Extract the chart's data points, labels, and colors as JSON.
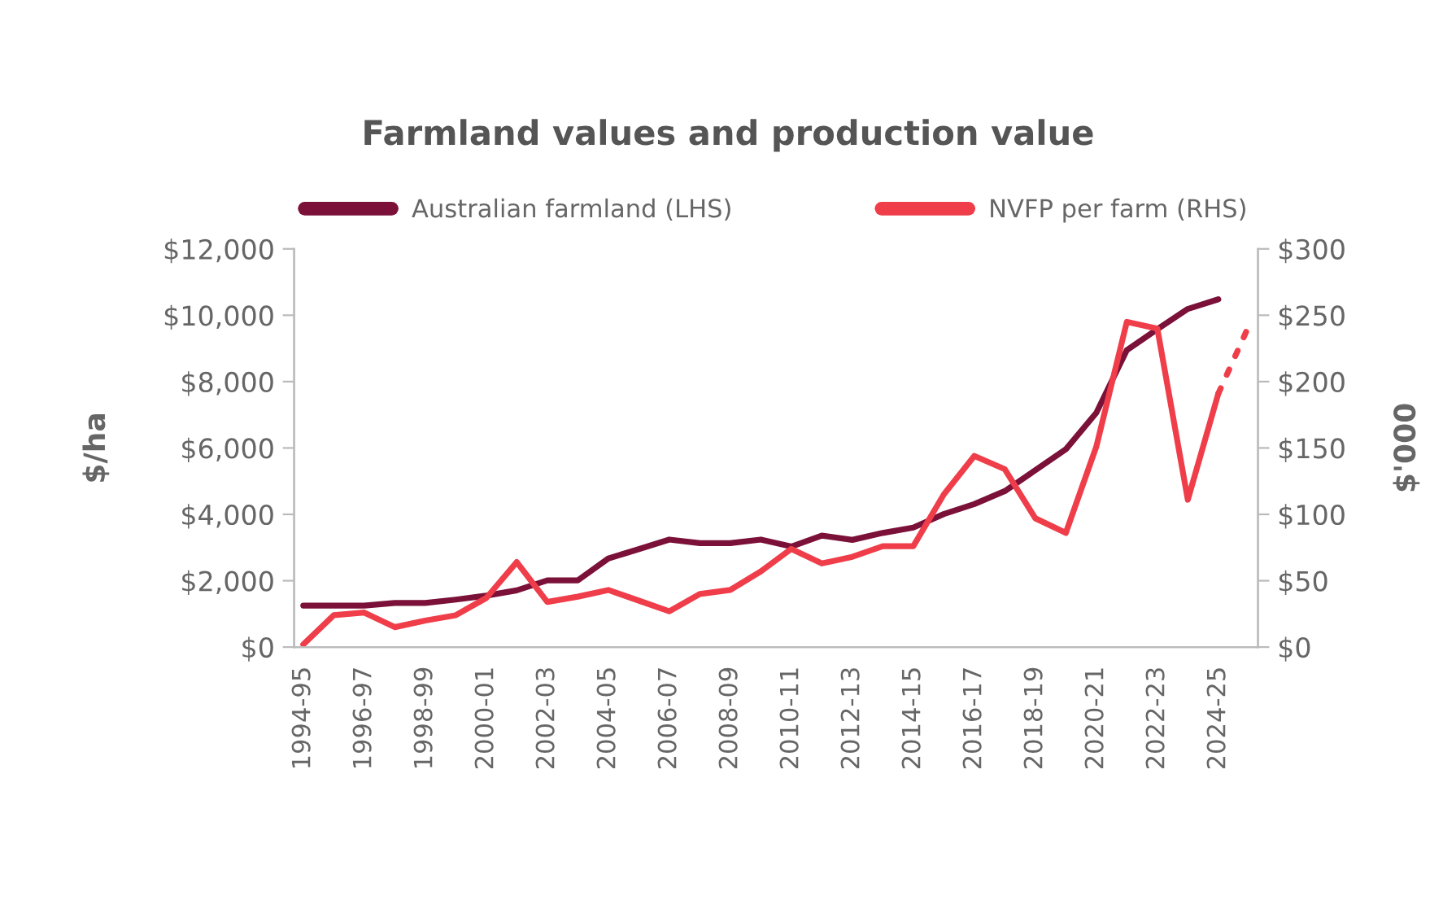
{
  "chart_data": {
    "type": "line",
    "title": "Farmland values and production value",
    "categories": [
      "1994-95",
      null,
      "1996-97",
      null,
      "1998-99",
      null,
      "2000-01",
      null,
      "2002-03",
      null,
      "2004-05",
      null,
      "2006-07",
      null,
      "2008-09",
      null,
      "2010-11",
      null,
      "2012-13",
      null,
      "2014-15",
      null,
      "2016-17",
      null,
      "2018-19",
      null,
      "2020-21",
      null,
      "2022-23",
      null,
      "2024-25",
      null
    ],
    "series": [
      {
        "name": "Australian farmland (LHS)",
        "color": "#7b1038",
        "values": [
          1250,
          1250,
          1250,
          1330,
          1330,
          1430,
          1550,
          1710,
          2010,
          2010,
          2670,
          2950,
          3240,
          3130,
          3130,
          3240,
          3030,
          3360,
          3230,
          3440,
          3600,
          4010,
          4310,
          4700,
          5330,
          5960,
          7060,
          8950,
          9580,
          10190,
          10480,
          null
        ]
      },
      {
        "name": "NVFP per farm (RHS)",
        "color": "#ef3e4a",
        "axis": "y2",
        "values": [
          2,
          24,
          26,
          15,
          20,
          24,
          37,
          64,
          34,
          38,
          43,
          35,
          27,
          40,
          43,
          57,
          74,
          63,
          68,
          76,
          76,
          115,
          144,
          134,
          97,
          86,
          151,
          245,
          240,
          111,
          191,
          null
        ]
      },
      {
        "color": "#ef3e4a",
        "axis": "y2",
        "line_style": "dotted",
        "values": [
          null,
          null,
          null,
          null,
          null,
          null,
          null,
          null,
          null,
          null,
          null,
          null,
          null,
          null,
          null,
          null,
          null,
          null,
          null,
          null,
          null,
          null,
          null,
          null,
          null,
          null,
          null,
          null,
          null,
          null,
          191,
          242
        ]
      }
    ],
    "ylabel": "$/ha",
    "y2label": "$'000",
    "ylim": [
      0,
      12000
    ],
    "yticks": [
      {
        "value": 0,
        "label": "$0"
      },
      {
        "value": 2000,
        "label": "$2,000"
      },
      {
        "value": 4000,
        "label": "$4,000"
      },
      {
        "value": 6000,
        "label": "$6,000"
      },
      {
        "value": 8000,
        "label": "$8,000"
      },
      {
        "value": 10000,
        "label": "$10,000"
      },
      {
        "value": 12000,
        "label": "$12,000"
      }
    ],
    "y2lim": [
      0,
      300
    ],
    "y2ticks": [
      {
        "value": 0,
        "label": "$0"
      },
      {
        "value": 50,
        "label": "$50"
      },
      {
        "value": 100,
        "label": "$100"
      },
      {
        "value": 150,
        "label": "$150"
      },
      {
        "value": 200,
        "label": "$200"
      },
      {
        "value": 250,
        "label": "$250"
      },
      {
        "value": 300,
        "label": "$300"
      }
    ],
    "legend": "top",
    "grid": false,
    "marker": "none",
    "line_style": "solid"
  }
}
